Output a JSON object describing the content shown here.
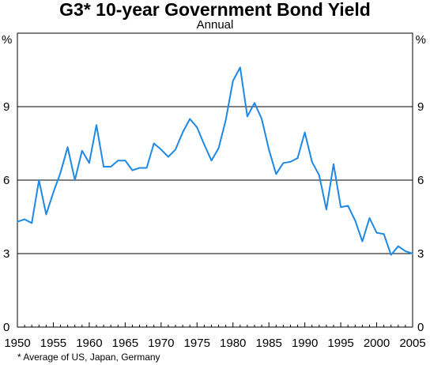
{
  "chart_data": {
    "type": "line",
    "title": "G3* 10-year Government Bond Yield",
    "subtitle": "Annual",
    "ylabel_left": "%",
    "ylabel_right": "%",
    "footnote": "* Average of US, Japan, Germany",
    "xlim": [
      1950,
      2005
    ],
    "ylim": [
      0,
      12
    ],
    "grid": "horizontal",
    "x_ticks": [
      1950,
      1955,
      1960,
      1965,
      1970,
      1975,
      1980,
      1985,
      1990,
      1995,
      2000,
      2005
    ],
    "y_ticks": [
      0,
      3,
      6,
      9
    ],
    "series": [
      {
        "color": "#1e88e5",
        "x": [
          1950,
          1951,
          1952,
          1953,
          1954,
          1955,
          1956,
          1957,
          1958,
          1959,
          1960,
          1961,
          1962,
          1963,
          1964,
          1965,
          1966,
          1967,
          1968,
          1969,
          1970,
          1971,
          1972,
          1973,
          1974,
          1975,
          1976,
          1977,
          1978,
          1979,
          1980,
          1981,
          1982,
          1983,
          1984,
          1985,
          1986,
          1987,
          1988,
          1989,
          1990,
          1991,
          1992,
          1993,
          1994,
          1995,
          1996,
          1997,
          1998,
          1999,
          2000,
          2001,
          2002,
          2003,
          2004,
          2005
        ],
        "values": [
          4.3,
          4.4,
          4.25,
          6.0,
          4.6,
          5.5,
          6.3,
          7.35,
          6.0,
          7.2,
          6.7,
          8.25,
          6.55,
          6.55,
          6.8,
          6.8,
          6.4,
          6.5,
          6.5,
          7.5,
          7.25,
          6.95,
          7.25,
          7.95,
          8.5,
          8.15,
          7.45,
          6.8,
          7.3,
          8.45,
          10.05,
          10.6,
          8.6,
          9.15,
          8.5,
          7.25,
          6.25,
          6.7,
          6.75,
          6.9,
          7.95,
          6.75,
          6.2,
          4.8,
          6.65,
          4.9,
          4.95,
          4.35,
          3.5,
          4.45,
          3.85,
          3.8,
          2.95,
          3.3,
          3.1,
          3.0
        ]
      }
    ]
  },
  "colors": {
    "line": "#1e88e5",
    "grid": "#000000",
    "frame": "#000000"
  }
}
